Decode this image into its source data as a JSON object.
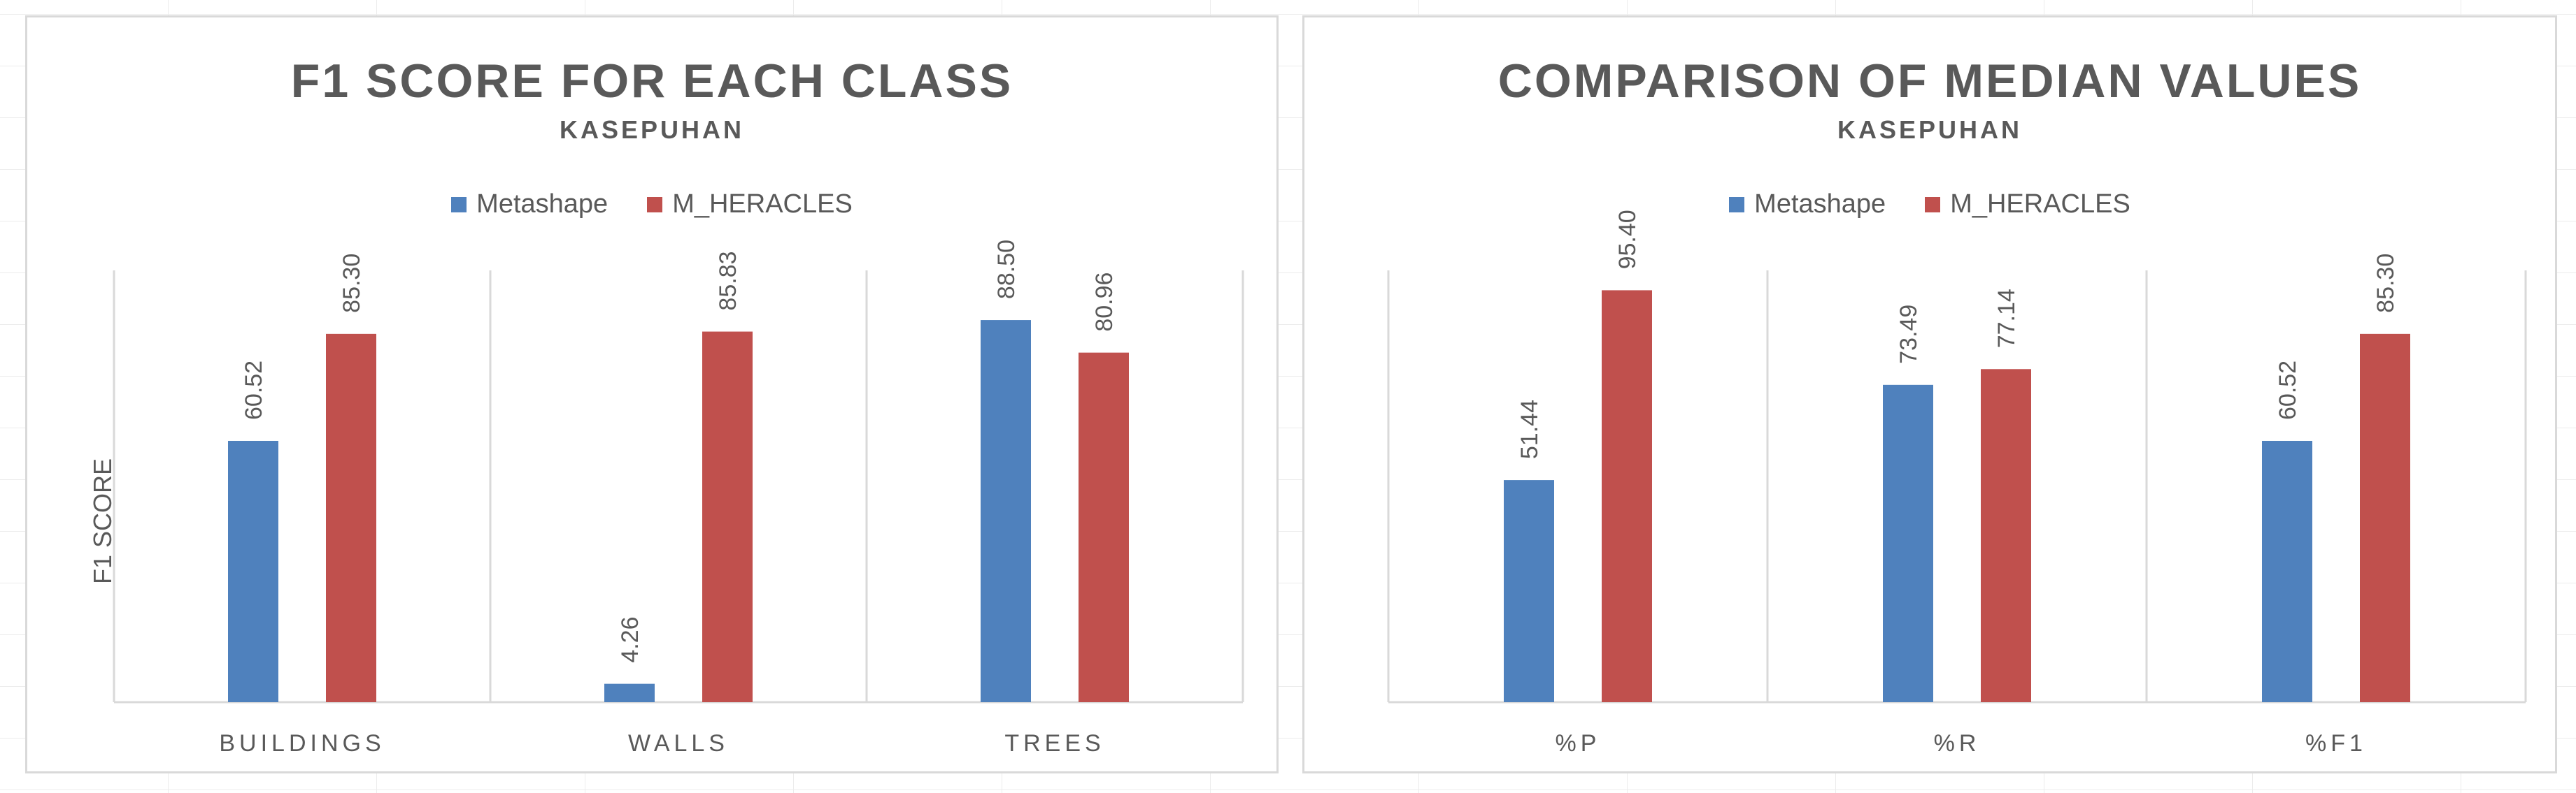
{
  "colors": {
    "metashape": "#4f81bd",
    "m_heracles": "#c0504d",
    "text": "#595959",
    "axis": "#d9d9d9"
  },
  "chart_data": [
    {
      "type": "bar",
      "title": "F1 SCORE FOR EACH CLASS",
      "subtitle": "KASEPUHAN",
      "xlabel": "",
      "ylabel": "F1 SCORE",
      "ylim": [
        0,
        100
      ],
      "grid": false,
      "legend_position": "top",
      "categories": [
        "BUILDINGS",
        "WALLS",
        "TREES"
      ],
      "series": [
        {
          "name": "Metashape",
          "values": [
            60.52,
            4.26,
            88.5
          ],
          "labels": [
            "60.52",
            "4.26",
            "88.50"
          ]
        },
        {
          "name": "M_HERACLES",
          "values": [
            85.3,
            85.83,
            80.96
          ],
          "labels": [
            "85.30",
            "85.83",
            "80.96"
          ]
        }
      ]
    },
    {
      "type": "bar",
      "title": "COMPARISON OF MEDIAN VALUES",
      "subtitle": "KASEPUHAN",
      "xlabel": "",
      "ylabel": "",
      "ylim": [
        0,
        100
      ],
      "grid": false,
      "legend_position": "top",
      "categories": [
        "%P",
        "%R",
        "%F1"
      ],
      "series": [
        {
          "name": "Metashape",
          "values": [
            51.44,
            73.49,
            60.52
          ],
          "labels": [
            "51.44",
            "73.49",
            "60.52"
          ]
        },
        {
          "name": "M_HERACLES",
          "values": [
            95.4,
            77.14,
            85.3
          ],
          "labels": [
            "95.40",
            "77.14",
            "85.30"
          ]
        }
      ]
    }
  ]
}
